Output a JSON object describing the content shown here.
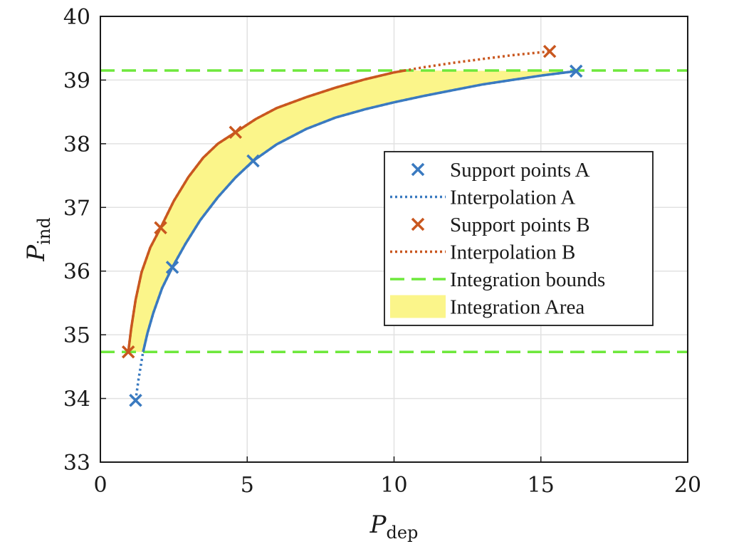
{
  "chart_data": {
    "type": "line",
    "xlabel": {
      "main": "P",
      "sub": "dep"
    },
    "ylabel": {
      "main": "P",
      "sub": "ind"
    },
    "xlim": [
      0,
      20
    ],
    "ylim": [
      33,
      40
    ],
    "xticks": [
      0,
      5,
      10,
      15,
      20
    ],
    "yticks": [
      33,
      34,
      35,
      36,
      37,
      38,
      39,
      40
    ],
    "grid": true,
    "legend_position": "right",
    "integration_bounds": [
      34.73,
      39.15
    ],
    "series": [
      {
        "name": "Support points A",
        "kind": "points",
        "color": "#3a7ac0",
        "x": [
          1.2,
          2.45,
          5.2,
          16.2
        ],
        "y": [
          33.97,
          36.06,
          37.73,
          39.14
        ]
      },
      {
        "name": "Interpolation A",
        "kind": "line",
        "color": "#3a7ac0",
        "x": [
          1.2,
          1.3,
          1.45,
          1.6,
          1.8,
          2.1,
          2.45,
          2.9,
          3.4,
          4.0,
          4.6,
          5.2,
          6.0,
          7.0,
          8.0,
          9.0,
          10.0,
          11.0,
          12.0,
          13.0,
          14.0,
          15.0,
          16.2
        ],
        "y": [
          33.97,
          34.3,
          34.72,
          35.02,
          35.34,
          35.73,
          36.06,
          36.43,
          36.8,
          37.16,
          37.47,
          37.73,
          37.99,
          38.23,
          38.41,
          38.54,
          38.65,
          38.75,
          38.84,
          38.93,
          39.0,
          39.07,
          39.14
        ]
      },
      {
        "name": "Support points B",
        "kind": "points",
        "color": "#c9571f",
        "x": [
          0.95,
          2.05,
          4.6,
          15.3
        ],
        "y": [
          34.73,
          36.68,
          38.18,
          39.45
        ]
      },
      {
        "name": "Interpolation B",
        "kind": "line",
        "color": "#c9571f",
        "x": [
          0.95,
          1.05,
          1.2,
          1.4,
          1.7,
          2.05,
          2.5,
          3.0,
          3.5,
          4.0,
          4.6,
          5.3,
          6.0,
          7.0,
          8.0,
          9.0,
          10.0,
          11.0,
          12.0,
          13.0,
          14.0,
          15.3
        ],
        "y": [
          34.73,
          35.1,
          35.55,
          35.98,
          36.37,
          36.68,
          37.1,
          37.48,
          37.78,
          38.0,
          38.18,
          38.39,
          38.56,
          38.73,
          38.88,
          39.01,
          39.12,
          39.2,
          39.27,
          39.33,
          39.39,
          39.45
        ]
      },
      {
        "name": "Integration bounds",
        "kind": "bounds",
        "color": "#6ee83c"
      },
      {
        "name": "Integration Area",
        "kind": "area",
        "color": "#fbf58a"
      }
    ]
  }
}
